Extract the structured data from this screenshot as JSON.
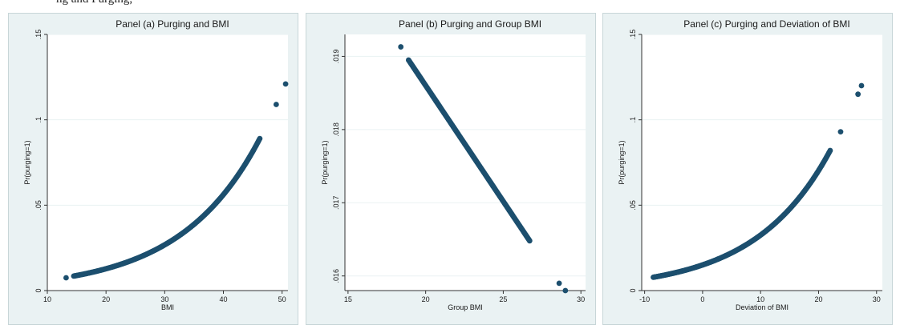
{
  "header": {
    "text": "ng and Purging, "
  },
  "chart_data": [
    {
      "type": "scatter",
      "title": "Panel (a) Purging and BMI",
      "xlabel": "BMI",
      "ylabel": "Pr(purging=1)",
      "xlim": [
        10,
        51
      ],
      "ylim": [
        0,
        0.15
      ],
      "x_ticks": [
        10,
        20,
        30,
        40,
        50
      ],
      "x_tick_labels": [
        "10",
        "20",
        "30",
        "40",
        "50"
      ],
      "y_ticks": [
        0,
        0.05,
        0.1,
        0.15
      ],
      "y_tick_labels": [
        "0",
        ".05",
        ".1",
        ".15"
      ],
      "grid": true,
      "curve": {
        "form": "exponential",
        "x_from": 14.5,
        "x_to": 46.2,
        "y_at_start": 0.0085,
        "y_at_end": 0.089
      },
      "points": [
        {
          "x": 13.2,
          "y": 0.0075
        },
        {
          "x": 49.0,
          "y": 0.109
        },
        {
          "x": 50.6,
          "y": 0.121
        }
      ],
      "outline_points": [
        {
          "x": 17,
          "y": 0.0103
        },
        {
          "x": 20,
          "y": 0.0131
        },
        {
          "x": 25,
          "y": 0.0199
        },
        {
          "x": 30,
          "y": 0.0295
        },
        {
          "x": 35,
          "y": 0.0403
        },
        {
          "x": 40,
          "y": 0.0553
        },
        {
          "x": 42,
          "y": 0.0628
        },
        {
          "x": 44,
          "y": 0.0735
        }
      ]
    },
    {
      "type": "scatter",
      "title": "Panel (b) Purging and Group BMI",
      "xlabel": "Group BMI",
      "ylabel": "Pr(purging=1)",
      "xlim": [
        14.8,
        30.3
      ],
      "ylim": [
        0.0158,
        0.0193
      ],
      "x_ticks": [
        15,
        20,
        25,
        30
      ],
      "x_tick_labels": [
        "15",
        "20",
        "25",
        "30"
      ],
      "y_ticks": [
        0.016,
        0.017,
        0.018,
        0.019
      ],
      "y_tick_labels": [
        ".016",
        ".017",
        ".018",
        ".019"
      ],
      "grid": true,
      "line": {
        "x_from": 18.9,
        "x_to": 26.7,
        "y_at_start": 0.01895,
        "y_at_end": 0.01648
      },
      "points": [
        {
          "x": 18.4,
          "y": 0.01913
        },
        {
          "x": 28.6,
          "y": 0.0159
        },
        {
          "x": 29.0,
          "y": 0.0158
        }
      ]
    },
    {
      "type": "scatter",
      "title": "Panel (c) Purging and Deviation of BMI",
      "xlabel": "Deviation of BMI",
      "ylabel": "Pr(purging=1)",
      "xlim": [
        -10.5,
        31
      ],
      "ylim": [
        0,
        0.15
      ],
      "x_ticks": [
        -10,
        0,
        10,
        20,
        30
      ],
      "x_tick_labels": [
        "-10",
        "0",
        "10",
        "20",
        "30"
      ],
      "y_ticks": [
        0,
        0.05,
        0.1,
        0.15
      ],
      "y_tick_labels": [
        "0",
        ".05",
        ".1",
        ".15"
      ],
      "grid": true,
      "curve": {
        "form": "exponential",
        "x_from": -8.5,
        "x_to": 22.0,
        "y_at_start": 0.0078,
        "y_at_end": 0.082
      },
      "points": [
        {
          "x": 23.8,
          "y": 0.093
        },
        {
          "x": 26.8,
          "y": 0.115
        },
        {
          "x": 27.4,
          "y": 0.12
        }
      ]
    }
  ]
}
